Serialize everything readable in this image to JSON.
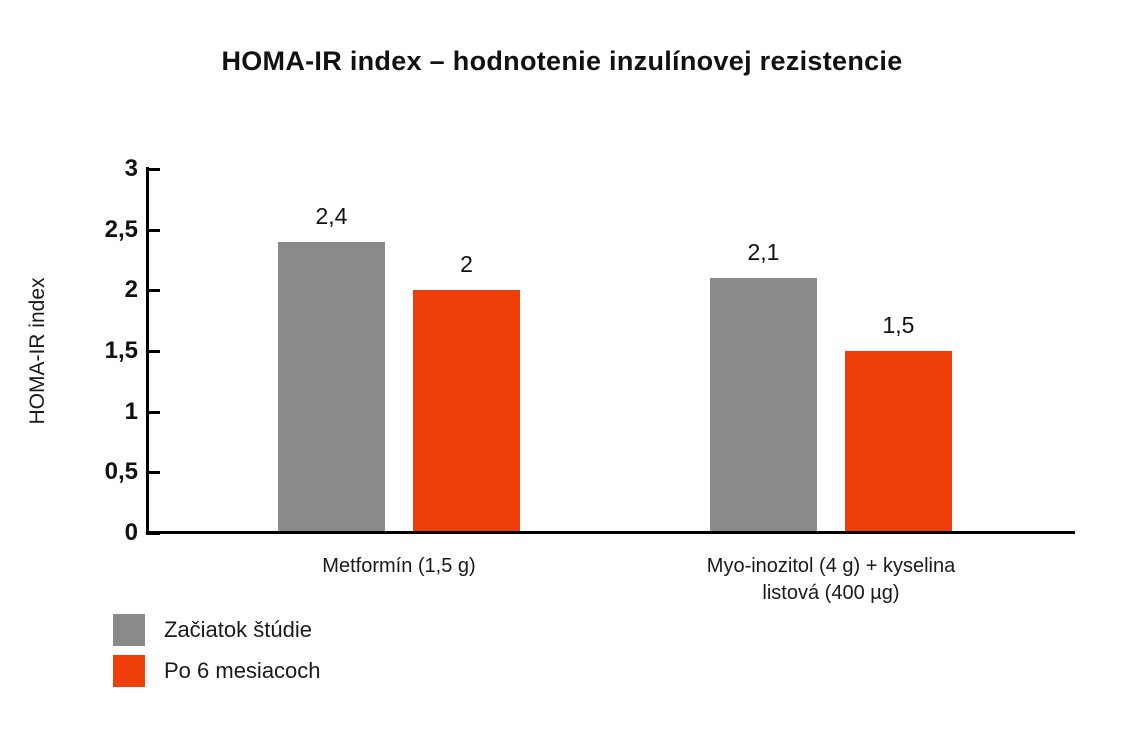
{
  "chart_data": {
    "type": "bar",
    "title": "HOMA-IR index – hodnotenie inzulínovej rezistencie",
    "xlabel": "",
    "ylabel": "HOMA-IR index",
    "ylim": [
      0,
      3
    ],
    "grid": false,
    "legend_position": "bottom-left",
    "yticks": [
      {
        "value": 0,
        "label": "0"
      },
      {
        "value": 0.5,
        "label": "0,5"
      },
      {
        "value": 1,
        "label": "1"
      },
      {
        "value": 1.5,
        "label": "1,5"
      },
      {
        "value": 2,
        "label": "2"
      },
      {
        "value": 2.5,
        "label": "2,5"
      },
      {
        "value": 3,
        "label": "3"
      }
    ],
    "categories": [
      "Metformín (1,5 g)",
      "Myo-inozitol (4 g) + kyselina listová (400 µg)"
    ],
    "category_lines": [
      [
        "Metformín (1,5 g)"
      ],
      [
        "Myo-inozitol (4 g) + kyselina",
        "listová (400 µg)"
      ]
    ],
    "series": [
      {
        "name": "Začiatok štúdie",
        "color": "#8a8a8a",
        "values": [
          2.4,
          2.1
        ],
        "value_labels": [
          "2,4",
          "2,1"
        ]
      },
      {
        "name": "Po 6 mesiacoch",
        "color": "#ee3e0a",
        "values": [
          2.0,
          1.5
        ],
        "value_labels": [
          "2",
          "1,5"
        ]
      }
    ],
    "axis_color": "#000000",
    "text_color": "#1a1a1a"
  }
}
